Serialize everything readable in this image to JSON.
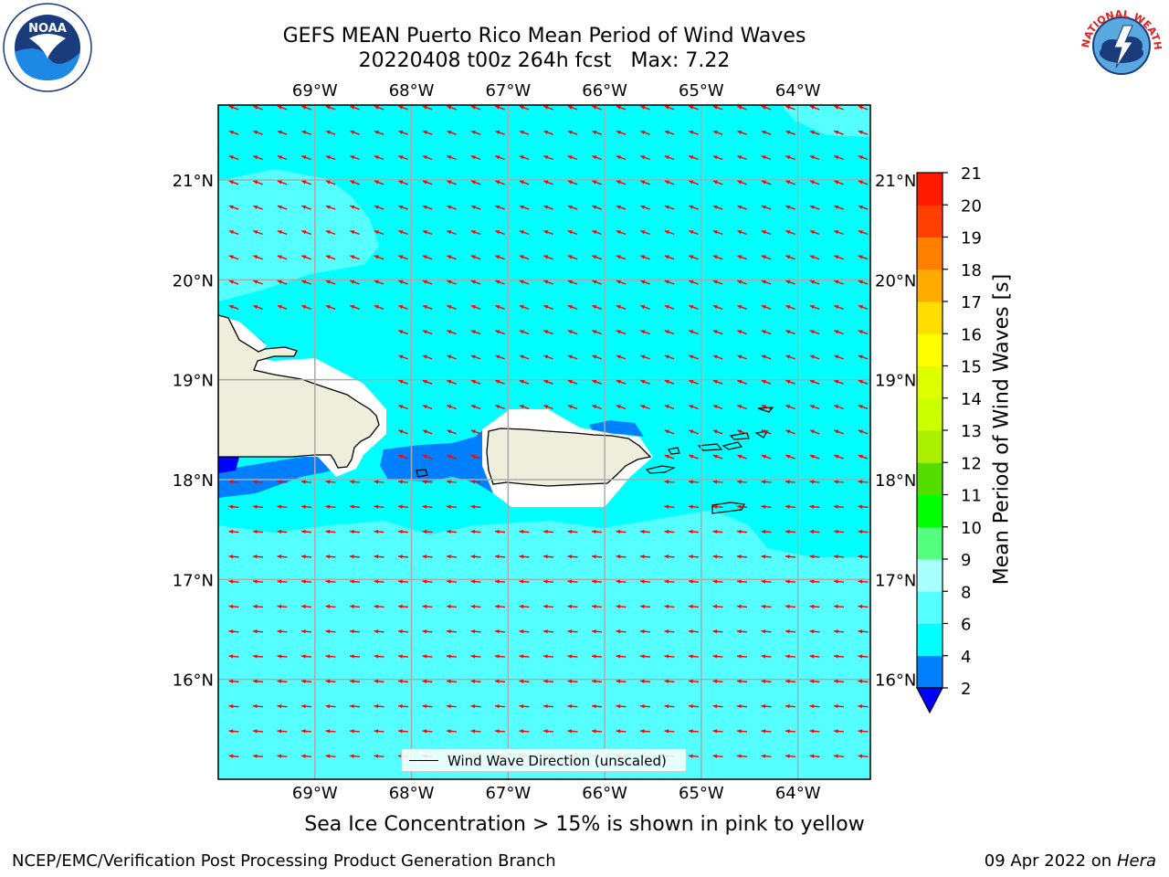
{
  "header": {
    "title_line1": "GEFS MEAN Puerto Rico Mean Period of Wind Waves",
    "title_line2": "20220408 t00z 264h fcst   Max: 7.22"
  },
  "logos": {
    "left_icon": "noaa-logo-icon",
    "right_icon": "nws-logo-icon",
    "left_text": "NOAA",
    "left_ring_text": "NATIONAL OCEANIC AND ATMOSPHERIC ADMINISTRATION U.S. DEPARTMENT OF COMMERCE",
    "right_ring_text": "NATIONAL WEATHER SERVICE"
  },
  "map": {
    "lon_labels": [
      "69°W",
      "68°W",
      "67°W",
      "66°W",
      "65°W",
      "64°W"
    ],
    "lat_labels": [
      "21°N",
      "20°N",
      "19°N",
      "18°N",
      "17°N",
      "16°N"
    ],
    "lon_values": [
      -69,
      -68,
      -67,
      -66,
      -65,
      -64
    ],
    "lat_values": [
      21,
      20,
      19,
      18,
      17,
      16
    ],
    "lon_range": [
      -70,
      -63.25
    ],
    "lat_range": [
      15,
      21.75
    ],
    "legend_label": "Wind Wave Direction (unscaled)",
    "arrow_color": "#ff0000",
    "land_color": "#efeedd",
    "ocean_base_color": "#00ffff"
  },
  "colorbar": {
    "label": "Mean Period of Wind Waves [s]",
    "tick_labels": [
      "2",
      "4",
      "6",
      "8",
      "9",
      "10",
      "11",
      "12",
      "13",
      "14",
      "15",
      "16",
      "17",
      "18",
      "19",
      "20",
      "21"
    ],
    "colors": [
      "#0000ff",
      "#0080ff",
      "#00ffff",
      "#55ffff",
      "#aaffff",
      "#55ff80",
      "#00ff00",
      "#55dd00",
      "#aaee00",
      "#ccff00",
      "#ddff00",
      "#ffff00",
      "#ffdd00",
      "#ffaa00",
      "#ff8000",
      "#ff4000",
      "#ff1a00",
      "#ff0000"
    ],
    "under_color": "#0000ff"
  },
  "subtitle": "Sea Ice Concentration > 15% is shown in pink to yellow",
  "footer": {
    "left": "NCEP/EMC/Verification Post Processing Product Generation Branch",
    "right_prefix": "09 Apr 2022 on ",
    "right_host": "Hera"
  }
}
